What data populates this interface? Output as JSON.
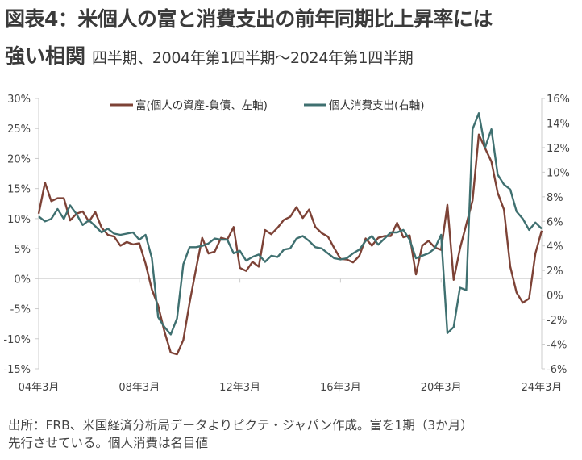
{
  "title": {
    "line1": "図表4：米個人の富と消費支出の前年同期比上昇率には",
    "line2": "強い相関",
    "subtitle": "四半期、2004年第1四半期～2024年第1四半期"
  },
  "source": {
    "line1": "出所：FRB、米国経済分析局データよりピクテ・ジャパン作成。富を1期（3か月）",
    "line2": "先行させている。個人消費は名目値"
  },
  "colors": {
    "wealth": "#7d4236",
    "consumption": "#3f7070"
  },
  "chart_data": {
    "type": "line",
    "title": "図表4：米個人の富と消費支出の前年同期比上昇率には強い相関",
    "x_start": "2004Q1",
    "x_end": "2024Q1",
    "frequency": "quarterly",
    "x_tick_labels": [
      "04年3月",
      "08年3月",
      "12年3月",
      "16年3月",
      "20年3月",
      "24年3月"
    ],
    "x_tick_index": [
      0,
      16,
      32,
      48,
      64,
      80
    ],
    "y_left": {
      "lim": [
        -15,
        30
      ],
      "ticks": [
        30,
        25,
        20,
        15,
        10,
        5,
        0,
        -5,
        -10,
        -15
      ],
      "tick_labels": [
        "30%",
        "25%",
        "20%",
        "15%",
        "10%",
        "5%",
        "0%",
        "-5%",
        "-10%",
        "-15%"
      ]
    },
    "y_right": {
      "lim": [
        -6,
        16
      ],
      "ticks": [
        16,
        14,
        12,
        10,
        8,
        6,
        4,
        2,
        0,
        -2,
        -4,
        -6
      ],
      "tick_labels": [
        "16%",
        "14%",
        "12%",
        "10%",
        "8%",
        "6%",
        "4%",
        "2%",
        "0%",
        "-2%",
        "-4%",
        "-6%"
      ]
    },
    "legend_position": "top-center",
    "series": [
      {
        "name": "富(個人の資産-負債、左軸)",
        "axis": "left",
        "values": [
          10.8,
          16.0,
          12.9,
          13.4,
          13.4,
          9.7,
          10.8,
          11.2,
          9.5,
          11.1,
          8.5,
          7.3,
          7.0,
          5.5,
          6.1,
          5.7,
          5.9,
          2.5,
          -1.8,
          -4.5,
          -8.8,
          -12.3,
          -12.6,
          -10.2,
          -4.0,
          1.5,
          6.8,
          4.2,
          4.5,
          6.8,
          6.5,
          8.6,
          1.8,
          1.3,
          2.8,
          2.0,
          8.1,
          7.4,
          8.5,
          9.8,
          10.3,
          11.9,
          10.1,
          11.5,
          8.6,
          7.6,
          7.0,
          5.1,
          3.3,
          3.2,
          2.7,
          3.8,
          6.7,
          5.5,
          6.8,
          7.1,
          7.1,
          9.3,
          6.9,
          7.2,
          0.7,
          5.5,
          6.3,
          5.2,
          4.8,
          12.3,
          -0.2,
          5.0,
          9.0,
          13.0,
          24.0,
          21.7,
          19.5,
          14.3,
          11.5,
          2.0,
          -2.3,
          -4.0,
          -3.3,
          4.2,
          8.0
        ]
      },
      {
        "name": "個人消費支出(右軸)",
        "axis": "right",
        "values": [
          6.4,
          6.0,
          6.2,
          7.0,
          6.2,
          7.3,
          6.6,
          5.7,
          6.1,
          5.6,
          5.1,
          5.4,
          5.0,
          4.9,
          5.0,
          5.1,
          4.5,
          4.9,
          3.0,
          -1.8,
          -2.6,
          -3.2,
          -1.9,
          2.5,
          3.9,
          3.9,
          4.0,
          4.2,
          4.6,
          4.5,
          4.5,
          3.4,
          3.6,
          2.8,
          3.1,
          3.3,
          2.7,
          3.2,
          3.1,
          3.7,
          3.8,
          4.6,
          4.8,
          4.4,
          3.9,
          3.8,
          3.4,
          3.0,
          2.9,
          3.0,
          3.4,
          3.7,
          4.4,
          4.8,
          4.1,
          4.6,
          5.1,
          5.1,
          5.3,
          4.5,
          3.0,
          3.2,
          3.4,
          3.8,
          4.9,
          -3.1,
          -2.6,
          0.6,
          0.4,
          13.5,
          14.8,
          12.0,
          13.5,
          9.8,
          9.0,
          8.6,
          6.8,
          6.2,
          5.3,
          5.9,
          5.4
        ]
      }
    ]
  }
}
